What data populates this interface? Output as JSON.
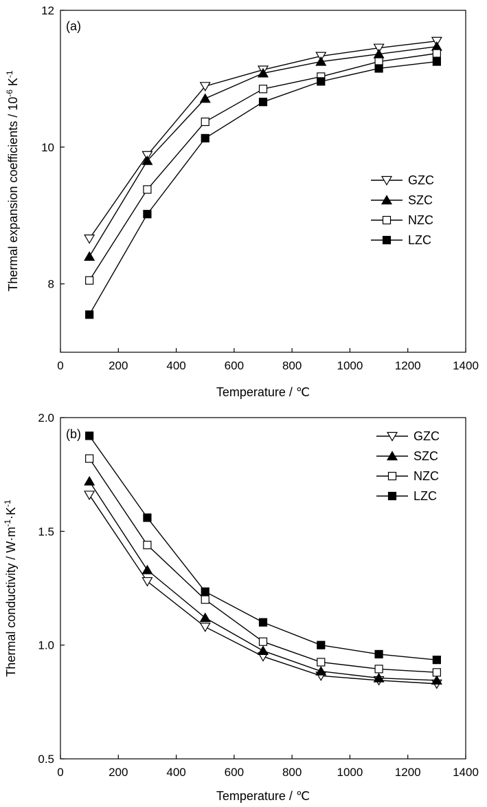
{
  "chart_data": [
    {
      "type": "line",
      "panel_label": "(a)",
      "xlabel": "Temperature / ℃",
      "ylabel": "Thermal expansion coefficients / 10",
      "ylabel_exp": "-6",
      "ylabel_unit": " K",
      "ylabel_unit_exp": "-1",
      "xlim": [
        0,
        1400
      ],
      "ylim": [
        7,
        12
      ],
      "xticks": [
        0,
        200,
        400,
        600,
        800,
        1000,
        1200,
        1400
      ],
      "yticks": [
        8,
        10,
        12
      ],
      "x": [
        100,
        300,
        500,
        700,
        900,
        1100,
        1300
      ],
      "legend_position": "center-right",
      "series": [
        {
          "name": "GZC",
          "marker": "open-triangle-down",
          "values": [
            8.66,
            9.88,
            10.89,
            11.13,
            11.33,
            11.45,
            11.55
          ]
        },
        {
          "name": "SZC",
          "marker": "filled-triangle-up",
          "values": [
            8.4,
            9.8,
            10.71,
            11.08,
            11.25,
            11.36,
            11.47
          ]
        },
        {
          "name": "NZC",
          "marker": "open-square",
          "values": [
            8.05,
            9.38,
            10.37,
            10.85,
            11.03,
            11.25,
            11.37
          ]
        },
        {
          "name": "LZC",
          "marker": "filled-square",
          "values": [
            7.55,
            9.02,
            10.13,
            10.66,
            10.96,
            11.15,
            11.25
          ]
        }
      ]
    },
    {
      "type": "line",
      "panel_label": "(b)",
      "xlabel": "Temperature / ℃",
      "ylabel": "Thermal conductivity / W·m",
      "ylabel_exp": "-1",
      "ylabel_unit": "·K",
      "ylabel_unit_exp": "-1",
      "xlim": [
        0,
        1400
      ],
      "ylim": [
        0.5,
        2.0
      ],
      "xticks": [
        0,
        200,
        400,
        600,
        800,
        1000,
        1200,
        1400
      ],
      "yticks": [
        0.5,
        1.0,
        1.5,
        2.0
      ],
      "ytick_labels": [
        "0.5",
        "1.0",
        "1.5",
        "2.0"
      ],
      "x": [
        100,
        300,
        500,
        700,
        900,
        1100,
        1300
      ],
      "legend_position": "top-right",
      "series": [
        {
          "name": "GZC",
          "marker": "open-triangle-down",
          "values": [
            1.66,
            1.28,
            1.08,
            0.95,
            0.865,
            0.845,
            0.83
          ]
        },
        {
          "name": "SZC",
          "marker": "filled-triangle-up",
          "values": [
            1.72,
            1.33,
            1.12,
            0.975,
            0.885,
            0.855,
            0.845
          ]
        },
        {
          "name": "NZC",
          "marker": "open-square",
          "values": [
            1.82,
            1.44,
            1.2,
            1.015,
            0.925,
            0.895,
            0.88
          ]
        },
        {
          "name": "LZC",
          "marker": "filled-square",
          "values": [
            1.92,
            1.56,
            1.235,
            1.1,
            1.0,
            0.96,
            0.935
          ]
        }
      ]
    }
  ]
}
